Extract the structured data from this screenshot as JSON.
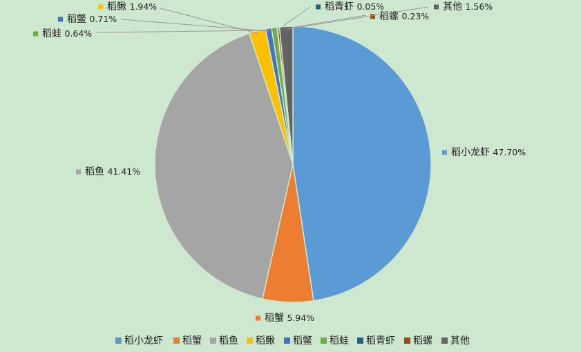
{
  "chart_data": {
    "type": "pie",
    "categories": [
      "稻小龙虾",
      "稻蟹",
      "稻鱼",
      "稻鳅",
      "稻鳖",
      "稻蛙",
      "稻青虾",
      "稻螺",
      "其他"
    ],
    "values": [
      47.7,
      5.94,
      41.41,
      1.94,
      0.71,
      0.64,
      0.05,
      0.23,
      1.56
    ],
    "value_labels": [
      "47.70%",
      "5.94%",
      "41.41%",
      "1.94%",
      "0.71%",
      "0.64%",
      "0.05%",
      "0.23%",
      "1.56%"
    ],
    "colors": [
      "#5b9bd5",
      "#ed7d31",
      "#a5a5a5",
      "#ffc000",
      "#4472c4",
      "#70ad47",
      "#255e91",
      "#9e480e",
      "#636363"
    ],
    "legend": "bottom"
  }
}
